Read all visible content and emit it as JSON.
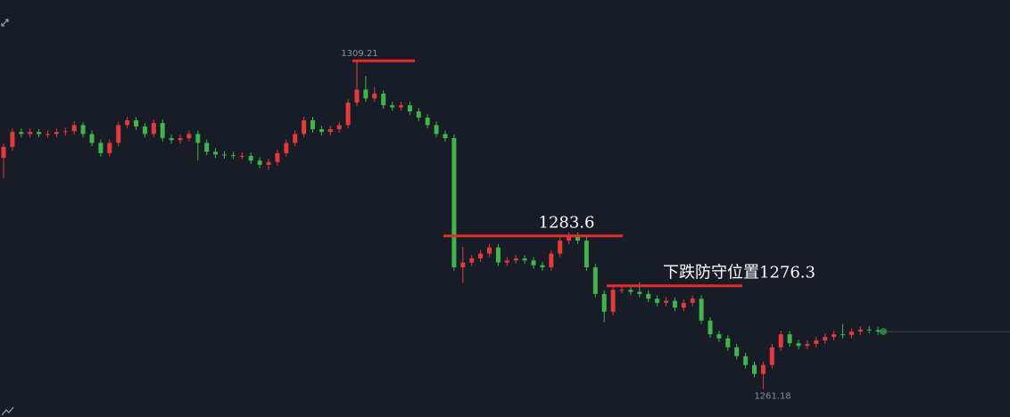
{
  "chart_data": {
    "type": "candlestick",
    "up_color": "#e23b3b",
    "down_color": "#3fb54a",
    "ylim": [
      1257.1,
      1318.1
    ],
    "open": [
      1295.0,
      1296.6,
      1298.8,
      1298.5,
      1298.8,
      1298.5,
      1298.5,
      1298.8,
      1298.9,
      1299.8,
      1298.5,
      1297.2,
      1295.7,
      1297.2,
      1299.8,
      1300.5,
      1299.6,
      1298.5,
      1300.1,
      1297.9,
      1297.6,
      1297.9,
      1298.5,
      1297.2,
      1295.9,
      1295.5,
      1295.4,
      1295.3,
      1295.3,
      1294.6,
      1294.0,
      1294.4,
      1295.7,
      1297.2,
      1298.5,
      1300.5,
      1299.2,
      1298.8,
      1299.2,
      1299.8,
      1303.1,
      1305.0,
      1303.7,
      1304.4,
      1302.7,
      1302.4,
      1302.7,
      1301.8,
      1300.9,
      1299.8,
      1298.5,
      1297.9,
      1279.0,
      1279.7,
      1280.3,
      1281.0,
      1281.9,
      1279.7,
      1280.0,
      1280.3,
      1280.0,
      1279.3,
      1279.0,
      1281.0,
      1282.9,
      1283.6,
      1282.9,
      1279.0,
      1275.1,
      1272.5,
      1275.7,
      1275.7,
      1275.4,
      1275.1,
      1274.4,
      1273.8,
      1274.1,
      1273.1,
      1273.8,
      1274.4,
      1271.2,
      1269.2,
      1268.6,
      1267.3,
      1266.0,
      1264.7,
      1263.4,
      1264.7,
      1267.3,
      1269.2,
      1267.9,
      1267.5,
      1267.8,
      1268.3,
      1268.8,
      1269.2,
      1269.1,
      1269.6,
      1269.9,
      1269.8
    ],
    "high": [
      1297.1,
      1299.3,
      1299.3,
      1299.3,
      1299.2,
      1299.0,
      1299.3,
      1299.4,
      1300.4,
      1300.2,
      1299.0,
      1297.7,
      1297.7,
      1300.3,
      1301.0,
      1301.0,
      1300.1,
      1300.6,
      1300.6,
      1298.4,
      1298.4,
      1299.0,
      1299.0,
      1297.7,
      1296.4,
      1296.0,
      1295.9,
      1295.8,
      1295.8,
      1295.1,
      1294.9,
      1296.2,
      1297.7,
      1299.0,
      1301.0,
      1301.0,
      1299.7,
      1299.7,
      1300.3,
      1303.6,
      1309.21,
      1307.0,
      1305.4,
      1304.9,
      1303.2,
      1303.2,
      1303.2,
      1302.3,
      1301.4,
      1300.3,
      1299.0,
      1298.4,
      1282.0,
      1280.8,
      1281.5,
      1282.4,
      1282.4,
      1280.5,
      1280.8,
      1280.8,
      1280.5,
      1279.8,
      1281.5,
      1283.4,
      1284.1,
      1284.1,
      1283.4,
      1279.5,
      1275.6,
      1276.2,
      1276.2,
      1276.2,
      1276.8,
      1275.6,
      1274.9,
      1274.6,
      1274.6,
      1274.3,
      1274.9,
      1274.9,
      1271.7,
      1269.7,
      1269.1,
      1267.8,
      1266.5,
      1265.2,
      1265.2,
      1267.8,
      1269.7,
      1269.7,
      1268.4,
      1268.3,
      1268.8,
      1269.3,
      1269.7,
      1270.7,
      1270.1,
      1270.4,
      1270.4,
      1270.3
    ],
    "low": [
      1292.0,
      1296.1,
      1298.0,
      1298.0,
      1298.0,
      1298.0,
      1298.0,
      1298.3,
      1298.4,
      1298.0,
      1296.7,
      1295.2,
      1295.2,
      1296.7,
      1299.3,
      1299.1,
      1298.0,
      1298.0,
      1297.4,
      1297.1,
      1297.1,
      1297.4,
      1294.6,
      1295.4,
      1295.0,
      1294.9,
      1294.8,
      1294.8,
      1294.1,
      1293.5,
      1293.2,
      1293.9,
      1295.2,
      1296.7,
      1298.0,
      1298.7,
      1298.3,
      1298.3,
      1298.7,
      1299.3,
      1302.6,
      1303.2,
      1303.2,
      1302.2,
      1301.9,
      1301.9,
      1301.3,
      1300.4,
      1299.3,
      1298.0,
      1297.4,
      1278.5,
      1276.7,
      1279.2,
      1279.8,
      1280.5,
      1279.2,
      1279.2,
      1279.5,
      1279.5,
      1278.8,
      1278.5,
      1278.5,
      1280.5,
      1282.4,
      1282.4,
      1278.5,
      1274.6,
      1271.0,
      1272.0,
      1275.2,
      1274.9,
      1274.6,
      1273.9,
      1273.3,
      1273.3,
      1272.6,
      1272.6,
      1273.3,
      1270.7,
      1268.7,
      1268.1,
      1266.8,
      1265.5,
      1264.2,
      1262.9,
      1261.18,
      1264.2,
      1266.8,
      1267.4,
      1267.0,
      1267.0,
      1267.3,
      1267.8,
      1268.3,
      1268.6,
      1268.6,
      1269.1,
      1269.3,
      1269.1
    ],
    "close": [
      1296.6,
      1298.8,
      1298.5,
      1298.8,
      1298.5,
      1298.5,
      1298.8,
      1298.9,
      1299.8,
      1298.5,
      1297.2,
      1295.7,
      1297.2,
      1299.8,
      1300.5,
      1299.6,
      1298.5,
      1300.1,
      1297.9,
      1297.6,
      1297.9,
      1298.5,
      1297.2,
      1295.9,
      1295.5,
      1295.4,
      1295.3,
      1295.3,
      1294.6,
      1294.0,
      1294.4,
      1295.7,
      1297.2,
      1298.5,
      1300.5,
      1299.2,
      1298.8,
      1299.2,
      1299.8,
      1303.1,
      1305.0,
      1303.7,
      1304.4,
      1302.7,
      1302.4,
      1302.7,
      1301.8,
      1300.9,
      1299.8,
      1298.5,
      1297.9,
      1279.0,
      1279.7,
      1280.3,
      1281.0,
      1281.9,
      1279.7,
      1280.0,
      1280.3,
      1280.0,
      1279.3,
      1279.0,
      1281.0,
      1282.9,
      1283.6,
      1282.9,
      1279.0,
      1275.1,
      1272.5,
      1275.7,
      1275.7,
      1275.4,
      1275.1,
      1274.4,
      1273.8,
      1274.1,
      1273.1,
      1273.8,
      1274.4,
      1271.2,
      1269.2,
      1268.6,
      1267.3,
      1266.0,
      1264.7,
      1263.4,
      1264.7,
      1267.3,
      1269.2,
      1267.9,
      1267.5,
      1267.8,
      1268.3,
      1268.8,
      1269.2,
      1269.1,
      1269.6,
      1269.9,
      1269.8,
      1269.6
    ],
    "annotations": [
      {
        "value": 1283.6
      },
      {
        "text": "下跌防守位置1276.3",
        "value": 1276.3
      }
    ],
    "annotation_color": "#e62b2b"
  }
}
